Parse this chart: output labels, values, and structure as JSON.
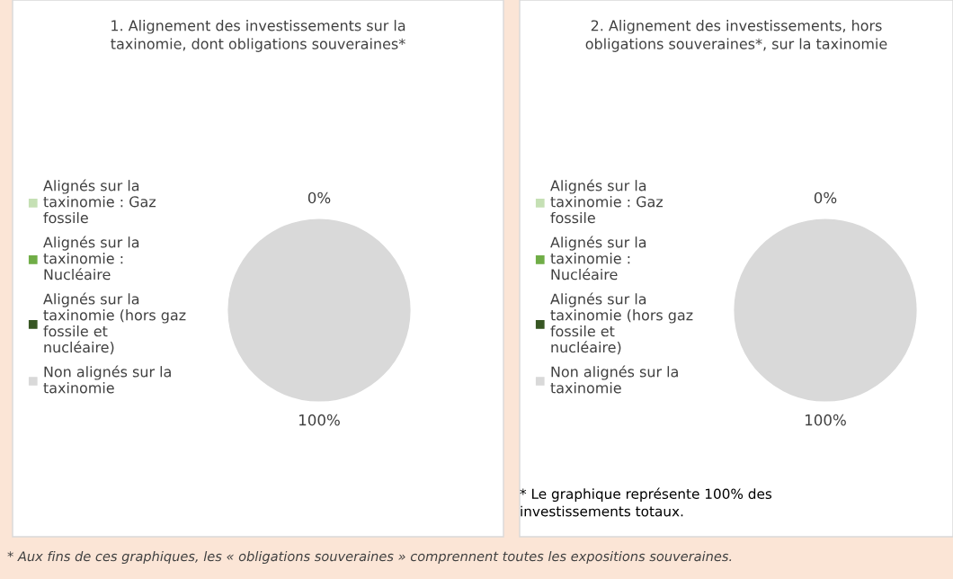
{
  "chart_data": [
    {
      "type": "pie",
      "title": "1. Alignement des investissements sur la taxinomie, dont obligations souveraines*",
      "categories": [
        "Alignés sur la taxinomie : Gaz fossile",
        "Alignés sur la taxinomie : Nucléaire",
        "Alignés sur la taxinomie (hors gaz fossile et nucléaire)",
        "Non alignés sur la taxinomie"
      ],
      "values": [
        0,
        0,
        0,
        100
      ],
      "colors": [
        "#c5e0b4",
        "#70ad47",
        "#375623",
        "#d9d9d9"
      ],
      "value_labels": [
        "0%",
        null,
        null,
        "100%"
      ],
      "legend": "left",
      "annotations": [
        "* Aux fins de ces graphiques, les « obligations souveraines » comprennent toutes les expositions souveraines."
      ]
    },
    {
      "type": "pie",
      "title": "2. Alignement des investissements, hors obligations souveraines*, sur la taxinomie",
      "categories": [
        "Alignés sur la taxinomie : Gaz fossile",
        "Alignés sur la taxinomie : Nucléaire",
        "Alignés sur la taxinomie (hors gaz fossile et nucléaire)",
        "Non alignés sur la taxinomie"
      ],
      "values": [
        0,
        0,
        0,
        100
      ],
      "colors": [
        "#c5e0b4",
        "#70ad47",
        "#375623",
        "#d9d9d9"
      ],
      "value_labels": [
        "0%",
        null,
        null,
        "100%"
      ],
      "legend": "left",
      "annotations": [
        "* Le graphique représente 100% des investissements totaux."
      ]
    }
  ]
}
